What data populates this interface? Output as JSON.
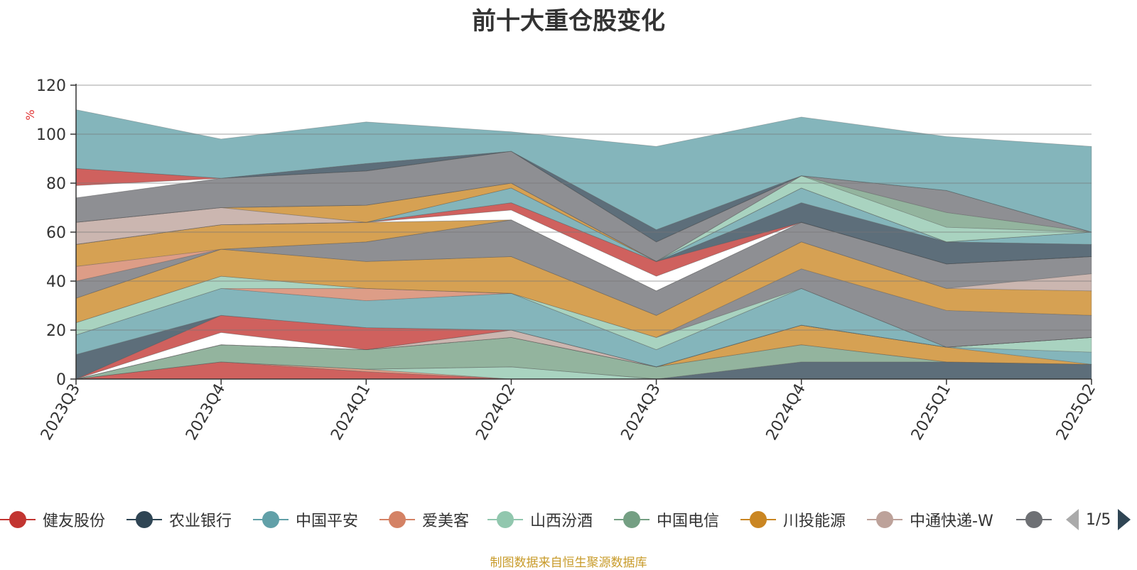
{
  "chart_data": {
    "type": "area",
    "title": "前十大重仓股变化",
    "ylabel": "%",
    "ylim": [
      0,
      120
    ],
    "yticks": [
      0,
      20,
      40,
      60,
      80,
      100,
      120
    ],
    "grid": true,
    "stacked": true,
    "categories": [
      "2023Q3",
      "2023Q4",
      "2024Q1",
      "2024Q2",
      "2024Q3",
      "2024Q4",
      "2025Q1",
      "2025Q2"
    ],
    "series": [
      {
        "name": "健友股份",
        "color": "#c23531",
        "values": [
          0,
          7,
          3,
          0,
          0,
          0,
          0,
          0
        ]
      },
      {
        "name": "爱美客",
        "color": "#d48265",
        "values": [
          0,
          0,
          1,
          0,
          0,
          0,
          0,
          0
        ]
      },
      {
        "name": "山西汾酒",
        "color": "#91c7ae",
        "values": [
          0,
          0,
          0,
          5,
          0,
          0,
          0,
          0
        ]
      },
      {
        "name": "农业银行",
        "color": "#2f4554",
        "values": [
          0,
          0,
          0,
          0,
          0,
          7,
          7,
          6
        ]
      },
      {
        "name": "中国电信",
        "color": "#749f83",
        "values": [
          0,
          7,
          8,
          12,
          5,
          7,
          0,
          0
        ]
      },
      {
        "name": "",
        "color": "#6e7074",
        "values": [
          0,
          0,
          0,
          0,
          0,
          0,
          0,
          0
        ]
      },
      {
        "name": "",
        "color": "#ca8622",
        "values": [
          0,
          0,
          0,
          0,
          0,
          8,
          6,
          0
        ]
      },
      {
        "name": "中国平安",
        "color": "#61a0a8",
        "values": [
          0,
          0,
          0,
          0,
          0,
          0,
          0,
          5
        ]
      },
      {
        "name": "",
        "color": "#91c7ae",
        "values": [
          0,
          0,
          0,
          0,
          0,
          0,
          0,
          6
        ]
      },
      {
        "name": "中通快递-W",
        "color": "#bda29a",
        "values": [
          0,
          0,
          0,
          3,
          0,
          0,
          0,
          0
        ]
      },
      {
        "name": "",
        "color": "#ffffff",
        "values": [
          0,
          5,
          0,
          0,
          0,
          0,
          0,
          0
        ]
      },
      {
        "name": "",
        "color": "#c23531",
        "values": [
          0,
          7,
          9,
          0,
          0,
          0,
          0,
          0
        ]
      },
      {
        "name": "",
        "color": "#2f4554",
        "values": [
          10,
          0,
          0,
          0,
          0,
          0,
          0,
          0
        ]
      },
      {
        "name": "",
        "color": "#61a0a8",
        "values": [
          8,
          11,
          11,
          15,
          7,
          15,
          0,
          0
        ]
      },
      {
        "name": "",
        "color": "#d48265",
        "values": [
          0,
          0,
          5,
          0,
          0,
          0,
          0,
          0
        ]
      },
      {
        "name": "",
        "color": "#91c7ae",
        "values": [
          5,
          5,
          0,
          0,
          5,
          0,
          0,
          0
        ]
      },
      {
        "name": "",
        "color": "#6e7074",
        "values": [
          0,
          0,
          0,
          0,
          0,
          8,
          15,
          9
        ]
      },
      {
        "name": "",
        "color": "#ca8622",
        "values": [
          10,
          11,
          11,
          15,
          9,
          11,
          9,
          10
        ]
      },
      {
        "name": "",
        "color": "#bda29a",
        "values": [
          0,
          0,
          0,
          0,
          0,
          0,
          0,
          7
        ]
      },
      {
        "name": "",
        "color": "#6e7074",
        "values": [
          7,
          0,
          8,
          15,
          10,
          8,
          10,
          7
        ]
      },
      {
        "name": "",
        "color": "#d48265",
        "values": [
          6,
          0,
          0,
          0,
          0,
          0,
          0,
          0
        ]
      },
      {
        "name": "",
        "color": "#ca8622",
        "values": [
          9,
          10,
          8,
          0,
          0,
          0,
          0,
          0
        ]
      },
      {
        "name": "",
        "color": "#ffffff",
        "values": [
          0,
          0,
          0,
          4,
          6,
          0,
          0,
          0
        ]
      },
      {
        "name": "",
        "color": "#c23531",
        "values": [
          0,
          0,
          0,
          3,
          6,
          0,
          0,
          0
        ]
      },
      {
        "name": "",
        "color": "#2f4554",
        "values": [
          0,
          0,
          0,
          0,
          0,
          8,
          9,
          5
        ]
      },
      {
        "name": "",
        "color": "#61a0a8",
        "values": [
          0,
          0,
          0,
          6,
          0,
          6,
          0,
          5
        ]
      },
      {
        "name": "",
        "color": "#bda29a",
        "values": [
          9,
          7,
          0,
          0,
          0,
          0,
          0,
          0
        ]
      },
      {
        "name": "",
        "color": "#ca8622",
        "values": [
          0,
          0,
          7,
          2,
          0,
          0,
          0,
          0
        ]
      },
      {
        "name": "",
        "color": "#91c7ae",
        "values": [
          0,
          0,
          0,
          0,
          0,
          5,
          6,
          0
        ]
      },
      {
        "name": "",
        "color": "#749f83",
        "values": [
          0,
          0,
          0,
          0,
          0,
          0,
          6,
          0
        ]
      },
      {
        "name": "",
        "color": "#6e7074",
        "values": [
          10,
          12,
          14,
          13,
          8,
          0,
          9,
          0
        ]
      },
      {
        "name": "",
        "color": "#ffffff",
        "values": [
          5,
          0,
          0,
          0,
          0,
          0,
          0,
          0
        ]
      },
      {
        "name": "",
        "color": "#c23531",
        "values": [
          7,
          0,
          0,
          0,
          0,
          0,
          0,
          0
        ]
      },
      {
        "name": "",
        "color": "#2f4554",
        "values": [
          0,
          0,
          3,
          0,
          5,
          0,
          0,
          0
        ]
      },
      {
        "name": "",
        "color": "#61a0a8",
        "values": [
          24,
          16,
          17,
          8,
          34,
          24,
          22,
          35
        ]
      }
    ]
  },
  "legend": {
    "items": [
      {
        "label": "健友股份",
        "color": "#c23531"
      },
      {
        "label": "农业银行",
        "color": "#2f4554"
      },
      {
        "label": "中国平安",
        "color": "#61a0a8"
      },
      {
        "label": "爱美客",
        "color": "#d48265"
      },
      {
        "label": "山西汾酒",
        "color": "#91c7ae"
      },
      {
        "label": "中国电信",
        "color": "#749f83"
      },
      {
        "label": "川投能源",
        "color": "#ca8622"
      },
      {
        "label": "中通快递-W",
        "color": "#bda29a"
      },
      {
        "label": "",
        "color": "#6e7074"
      }
    ],
    "pager": "1/5"
  },
  "source_note": "制图数据来自恒生聚源数据库"
}
